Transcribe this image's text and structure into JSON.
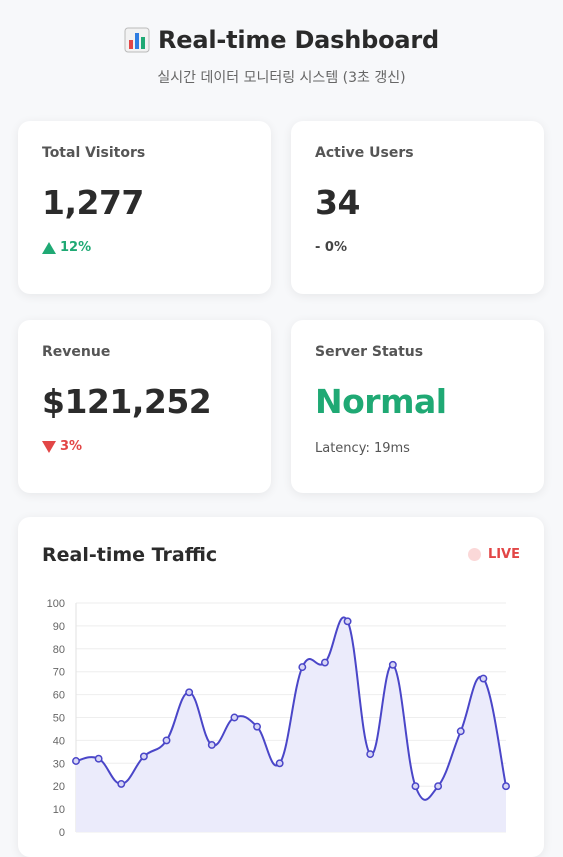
{
  "header": {
    "title": "Real-time Dashboard",
    "title_icon": "bar-chart-icon",
    "subtitle": "실시간 데이터 모니터링 시스템 (3초 갱신)"
  },
  "cards": {
    "visitors": {
      "label": "Total Visitors",
      "value": "1,277",
      "delta": "12%",
      "direction": "up"
    },
    "active": {
      "label": "Active Users",
      "value": "34",
      "delta": "- 0%"
    },
    "revenue": {
      "label": "Revenue",
      "value": "$121,252",
      "delta": "3%",
      "direction": "down"
    },
    "server": {
      "label": "Server Status",
      "value": "Normal",
      "latency": "Latency: 19ms"
    }
  },
  "traffic": {
    "title": "Real-time Traffic",
    "live_label": "LIVE"
  },
  "colors": {
    "accent_line": "#4a46c8",
    "fill": "#ebebfb",
    "positive": "#1fa974",
    "negative": "#e24646"
  },
  "chart_data": {
    "type": "area",
    "x": [
      1,
      2,
      3,
      4,
      5,
      6,
      7,
      8,
      9,
      10,
      11,
      12,
      13,
      14,
      15,
      16,
      17,
      18,
      19,
      20
    ],
    "values": [
      31,
      32,
      21,
      33,
      40,
      61,
      38,
      50,
      46,
      30,
      72,
      74,
      92,
      34,
      73,
      20,
      20,
      44,
      67,
      20
    ],
    "ylim": [
      0,
      100
    ],
    "yticks": [
      0,
      10,
      20,
      30,
      40,
      50,
      60,
      70,
      80,
      90,
      100
    ],
    "grid": true
  }
}
